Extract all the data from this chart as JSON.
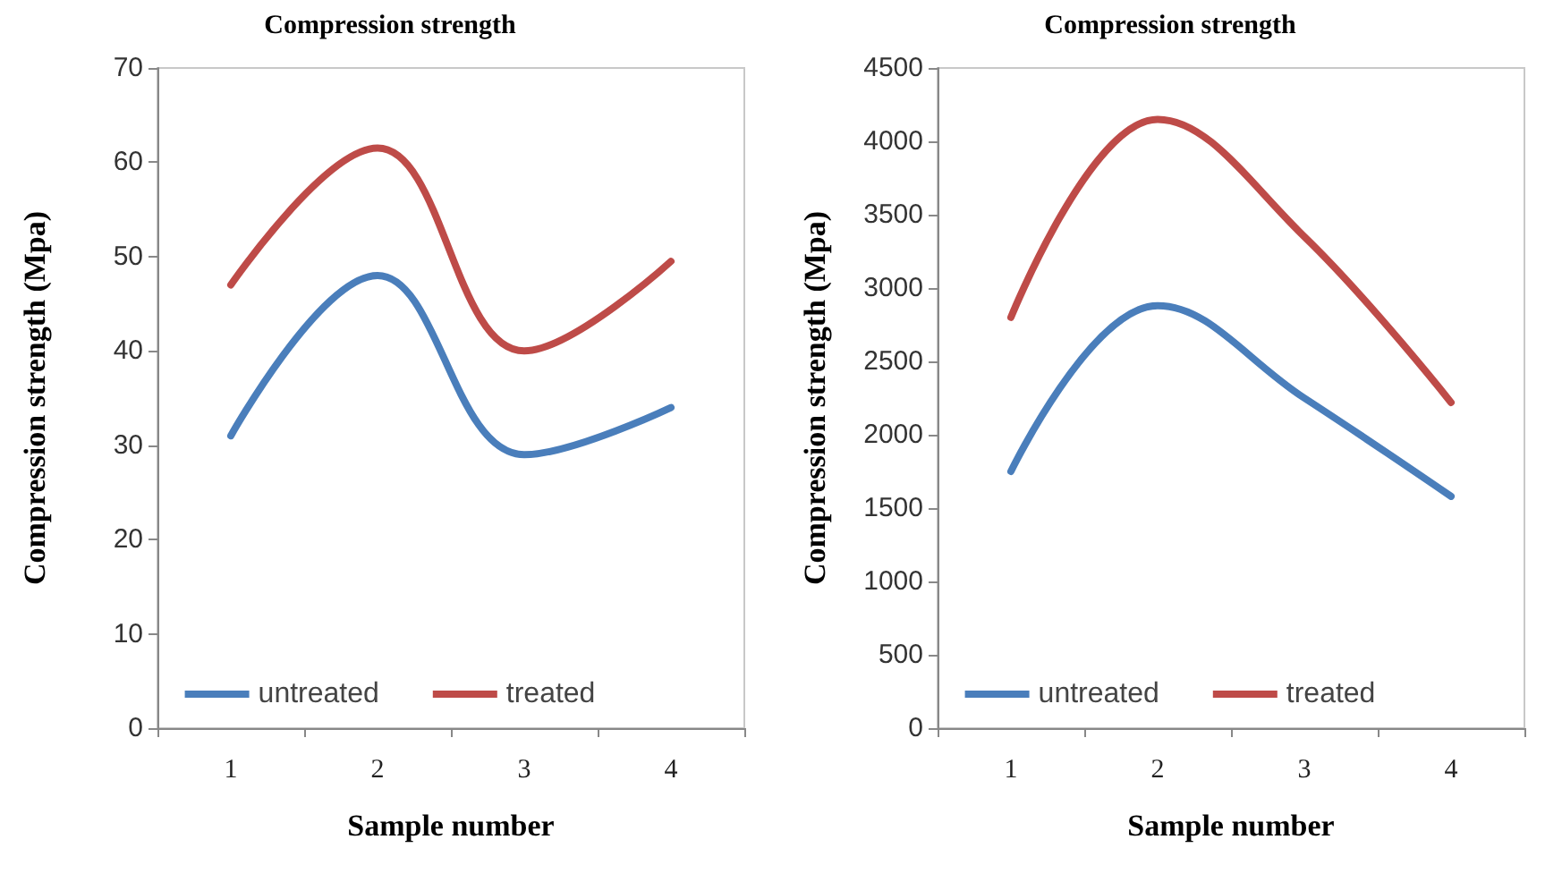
{
  "chart_data": [
    {
      "type": "line",
      "title": "Compression strength",
      "xlabel": "Sample number",
      "ylabel": "Compression strength (Mpa)",
      "categories": [
        "1",
        "2",
        "3",
        "4"
      ],
      "series": [
        {
          "name": "untreated",
          "color": "#4a7ebb",
          "values": [
            31,
            48,
            29,
            34
          ]
        },
        {
          "name": "treated",
          "color": "#be4b48",
          "values": [
            47,
            61.5,
            40,
            49.5
          ]
        }
      ],
      "ylim": [
        0,
        70
      ],
      "yticks": [
        0,
        10,
        20,
        30,
        40,
        50,
        60,
        70
      ],
      "grid": false,
      "legend": "bottom",
      "marker": "none"
    },
    {
      "type": "line",
      "title": "Compression strength",
      "xlabel": "Sample number",
      "ylabel": "Compression strength (Mpa)",
      "categories": [
        "1",
        "2",
        "3",
        "4"
      ],
      "series": [
        {
          "name": "untreated",
          "color": "#4a7ebb",
          "values": [
            1750,
            2880,
            2250,
            1580
          ]
        },
        {
          "name": "treated",
          "color": "#be4b48",
          "values": [
            2800,
            4150,
            3350,
            2220
          ]
        }
      ],
      "ylim": [
        0,
        4500
      ],
      "yticks": [
        0,
        500,
        1000,
        1500,
        2000,
        2500,
        3000,
        3500,
        4000,
        4500
      ],
      "grid": false,
      "legend": "bottom",
      "marker": "none"
    }
  ]
}
